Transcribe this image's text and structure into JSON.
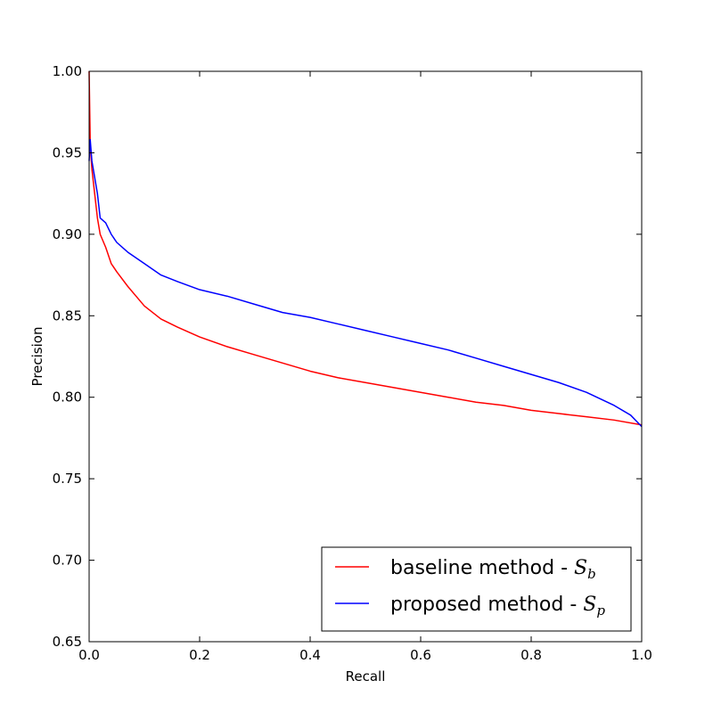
{
  "chart_data": {
    "type": "line",
    "title": "",
    "xlabel": "Recall",
    "ylabel": "Precision",
    "xlim": [
      0.0,
      1.0
    ],
    "ylim": [
      0.65,
      1.0
    ],
    "x_ticks": [
      0.0,
      0.2,
      0.4,
      0.6,
      0.8,
      1.0
    ],
    "x_tick_labels": [
      "0.0",
      "0.2",
      "0.4",
      "0.6",
      "0.8",
      "1.0"
    ],
    "y_ticks": [
      0.65,
      0.7,
      0.75,
      0.8,
      0.85,
      0.9,
      0.95,
      1.0
    ],
    "y_tick_labels": [
      "0.65",
      "0.70",
      "0.75",
      "0.80",
      "0.85",
      "0.90",
      "0.95",
      "1.00"
    ],
    "grid": false,
    "legend_position": "lower-right",
    "series": [
      {
        "name": "baseline method - ",
        "name_symbol": "S",
        "name_subscript": "b",
        "color": "#ff0000",
        "points": [
          [
            0.0,
            1.0
          ],
          [
            0.002,
            0.955
          ],
          [
            0.005,
            0.94
          ],
          [
            0.01,
            0.925
          ],
          [
            0.015,
            0.91
          ],
          [
            0.02,
            0.9
          ],
          [
            0.03,
            0.892
          ],
          [
            0.04,
            0.882
          ],
          [
            0.05,
            0.877
          ],
          [
            0.07,
            0.868
          ],
          [
            0.1,
            0.856
          ],
          [
            0.13,
            0.848
          ],
          [
            0.16,
            0.843
          ],
          [
            0.2,
            0.837
          ],
          [
            0.25,
            0.831
          ],
          [
            0.3,
            0.826
          ],
          [
            0.35,
            0.821
          ],
          [
            0.4,
            0.816
          ],
          [
            0.45,
            0.812
          ],
          [
            0.5,
            0.809
          ],
          [
            0.55,
            0.806
          ],
          [
            0.6,
            0.803
          ],
          [
            0.65,
            0.8
          ],
          [
            0.7,
            0.797
          ],
          [
            0.75,
            0.795
          ],
          [
            0.8,
            0.792
          ],
          [
            0.85,
            0.79
          ],
          [
            0.9,
            0.788
          ],
          [
            0.95,
            0.786
          ],
          [
            1.0,
            0.783
          ]
        ]
      },
      {
        "name": "proposed method - ",
        "name_symbol": "S",
        "name_subscript": "p",
        "color": "#0000ff",
        "points": [
          [
            0.0,
            0.945
          ],
          [
            0.002,
            0.958
          ],
          [
            0.005,
            0.945
          ],
          [
            0.01,
            0.935
          ],
          [
            0.015,
            0.925
          ],
          [
            0.02,
            0.91
          ],
          [
            0.03,
            0.907
          ],
          [
            0.04,
            0.9
          ],
          [
            0.05,
            0.895
          ],
          [
            0.07,
            0.889
          ],
          [
            0.1,
            0.882
          ],
          [
            0.13,
            0.875
          ],
          [
            0.16,
            0.871
          ],
          [
            0.2,
            0.866
          ],
          [
            0.25,
            0.862
          ],
          [
            0.3,
            0.857
          ],
          [
            0.35,
            0.852
          ],
          [
            0.4,
            0.849
          ],
          [
            0.45,
            0.845
          ],
          [
            0.5,
            0.841
          ],
          [
            0.55,
            0.837
          ],
          [
            0.6,
            0.833
          ],
          [
            0.65,
            0.829
          ],
          [
            0.7,
            0.824
          ],
          [
            0.75,
            0.819
          ],
          [
            0.8,
            0.814
          ],
          [
            0.85,
            0.809
          ],
          [
            0.9,
            0.803
          ],
          [
            0.95,
            0.795
          ],
          [
            0.98,
            0.789
          ],
          [
            1.0,
            0.782
          ]
        ]
      }
    ]
  }
}
